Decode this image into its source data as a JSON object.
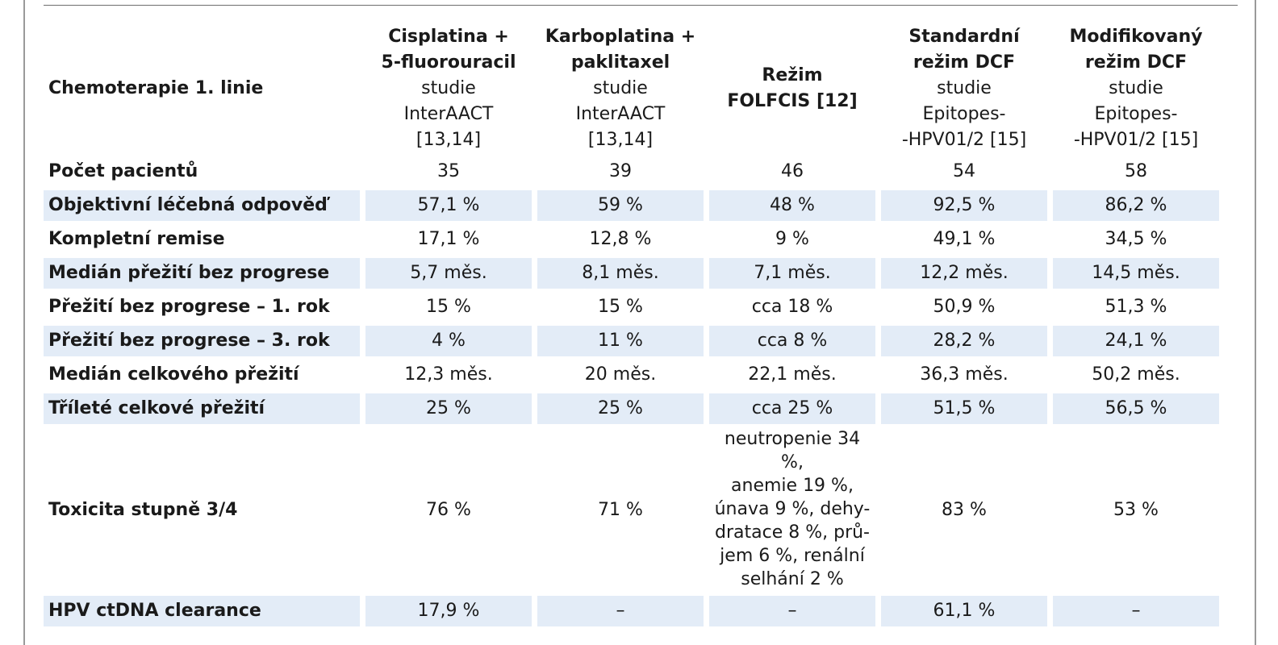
{
  "table": {
    "corner_label": "Chemoterapie 1. linie",
    "columns": [
      {
        "bold": [
          "Cisplatina +",
          "5-fluorouracil"
        ],
        "normal": [
          "studie",
          "InterAACT",
          "[13,14]"
        ]
      },
      {
        "bold": [
          "Karboplatina +",
          "paklitaxel"
        ],
        "normal": [
          "studie",
          "InterAACT",
          "[13,14]"
        ]
      },
      {
        "bold": [
          "Režim",
          "FOLFCIS [12]"
        ],
        "normal": []
      },
      {
        "bold": [
          "Standardní",
          "režim DCF"
        ],
        "normal": [
          "studie",
          "Epitopes-",
          "-HPV01/2 [15]"
        ]
      },
      {
        "bold": [
          "Modifikovaný",
          "režim DCF"
        ],
        "normal": [
          "studie",
          "Epitopes-",
          "-HPV01/2 [15]"
        ]
      }
    ],
    "rows": [
      {
        "label": "Počet pacientů",
        "shaded": false,
        "values": [
          "35",
          "39",
          "46",
          "54",
          "58"
        ]
      },
      {
        "label": "Objektivní léčebná odpověď",
        "shaded": true,
        "values": [
          "57,1 %",
          "59 %",
          "48 %",
          "92,5 %",
          "86,2 %"
        ]
      },
      {
        "label": "Kompletní remise",
        "shaded": false,
        "values": [
          "17,1 %",
          "12,8 %",
          "9 %",
          "49,1 %",
          "34,5 %"
        ]
      },
      {
        "label": "Medián přežití bez progrese",
        "shaded": true,
        "values": [
          "5,7 měs.",
          "8,1 měs.",
          "7,1 měs.",
          "12,2 měs.",
          "14,5 měs."
        ]
      },
      {
        "label": "Přežití bez progrese – 1. rok",
        "shaded": false,
        "values": [
          "15 %",
          "15 %",
          "cca 18 %",
          "50,9 %",
          "51,3 %"
        ]
      },
      {
        "label": "Přežití bez progrese – 3. rok",
        "shaded": true,
        "values": [
          "4 %",
          "11 %",
          "cca 8 %",
          "28,2 %",
          "24,1 %"
        ]
      },
      {
        "label": "Medián celkového přežití",
        "shaded": false,
        "values": [
          "12,3 měs.",
          "20 měs.",
          "22,1 měs.",
          "36,3 měs.",
          "50,2 měs."
        ]
      },
      {
        "label": "Tříleté celkové přežití",
        "shaded": true,
        "values": [
          "25 %",
          "25 %",
          "cca 25 %",
          "51,5 %",
          "56,5 %"
        ]
      }
    ],
    "toxicity": {
      "label": "Toxicita stupně 3/4",
      "values": [
        "76 %",
        "71 %",
        "",
        "83 %",
        "53 %"
      ],
      "folfcis_lines": [
        "neutropenie 34 %,",
        "anemie 19 %,",
        "únava 9 %, dehy-",
        "dratace 8 %, prů-",
        "jem 6 %, renální",
        "selhání 2 %"
      ]
    },
    "clearance": {
      "label": "HPV ctDNA clearance",
      "values": [
        "17,9 %",
        "–",
        "–",
        "61,1 %",
        "–"
      ]
    }
  }
}
